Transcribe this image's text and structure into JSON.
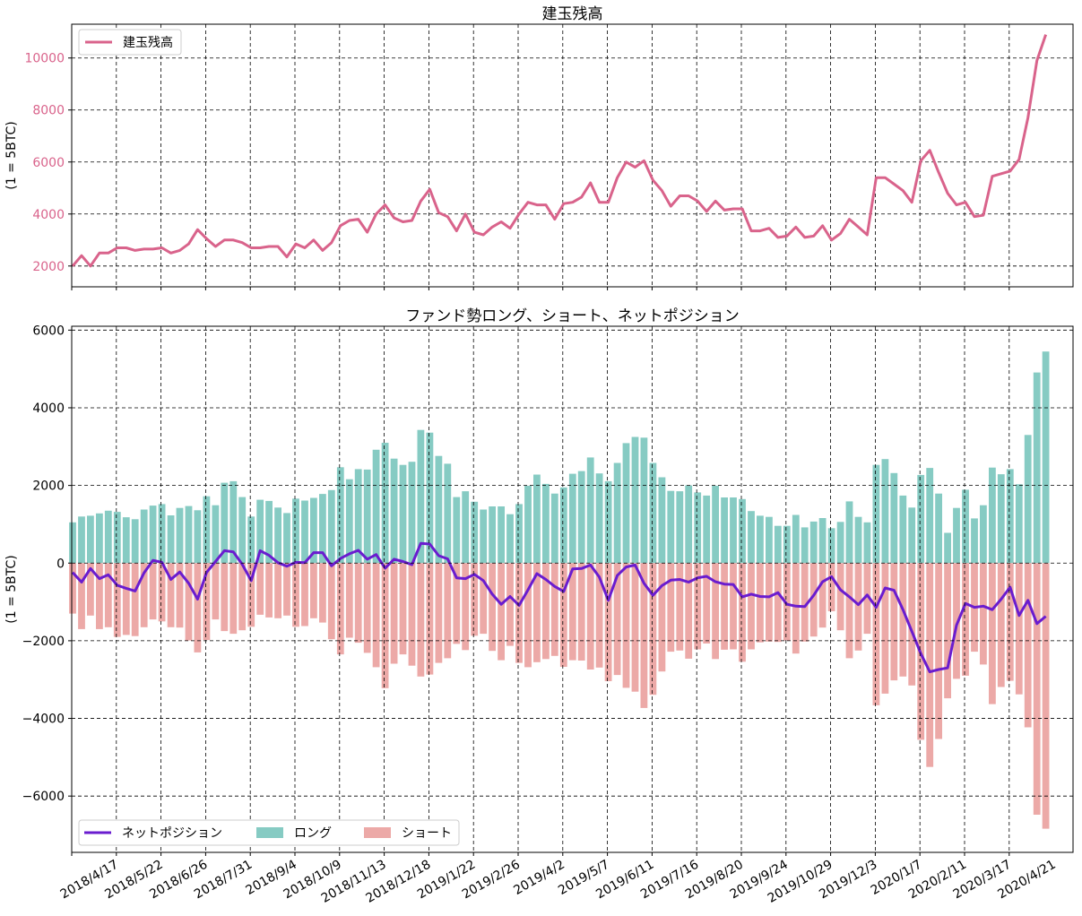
{
  "chart_data": [
    {
      "type": "line",
      "title": "建玉残高",
      "ylabel": "(1 = 5BTC)",
      "xlabel": "",
      "ylim": [
        1200,
        11300
      ],
      "yticks": [
        2000,
        4000,
        6000,
        8000,
        10000
      ],
      "grid": true,
      "legend": {
        "position": "top-left",
        "entries": [
          "建玉残高"
        ]
      },
      "colors": {
        "line": "#d9638b",
        "tick_labels": "#d9638b"
      },
      "series": [
        {
          "name": "建玉残高",
          "values": [
            2000,
            2400,
            2000,
            2500,
            2500,
            2700,
            2700,
            2600,
            2650,
            2650,
            2700,
            2500,
            2600,
            2850,
            3400,
            3050,
            2750,
            3000,
            3000,
            2900,
            2700,
            2700,
            2750,
            2750,
            2350,
            2850,
            2700,
            3000,
            2600,
            2900,
            3550,
            3750,
            3800,
            3300,
            4000,
            4350,
            3850,
            3700,
            3750,
            4500,
            4950,
            4050,
            3900,
            3350,
            4000,
            3300,
            3200,
            3500,
            3700,
            3450,
            4000,
            4450,
            4350,
            4350,
            3800,
            4400,
            4450,
            4650,
            5200,
            4450,
            4450,
            5400,
            6000,
            5800,
            6050,
            5300,
            4900,
            4300,
            4700,
            4700,
            4500,
            4100,
            4500,
            4150,
            4200,
            4200,
            3350,
            3350,
            3450,
            3100,
            3150,
            3500,
            3100,
            3150,
            3550,
            3000,
            3250,
            3800,
            3500,
            3200,
            5400,
            5400,
            5150,
            4900,
            4450,
            6050,
            6450,
            5600,
            4800,
            4350,
            4450,
            3900,
            3950,
            5450,
            5550,
            5650,
            6100,
            7700,
            9900,
            10900
          ]
        }
      ]
    },
    {
      "type": "bar",
      "title": "ファンド勢ロング、ショート、ネットポジション",
      "ylabel": "(1 = 5BTC)",
      "xlabel": "",
      "ylim": [
        -7450,
        6100
      ],
      "yticks": [
        -6000,
        -4000,
        -2000,
        0,
        2000,
        4000,
        6000
      ],
      "grid": true,
      "legend": {
        "position": "bottom-left",
        "entries": [
          "ネットポジション",
          "ロング",
          "ショート"
        ]
      },
      "colors": {
        "long": "#86cbc3",
        "short": "#eca9a7",
        "net": "#6a1ccf"
      },
      "x_tick_labels": [
        "2018/4/17",
        "2018/5/22",
        "2018/6/26",
        "2018/7/31",
        "2018/9/4",
        "2018/10/9",
        "2018/11/13",
        "2018/12/18",
        "2019/1/22",
        "2019/2/26",
        "2019/4/2",
        "2019/5/7",
        "2019/6/11",
        "2019/7/16",
        "2019/8/20",
        "2019/9/24",
        "2019/10/29",
        "2019/12/3",
        "2020/1/7",
        "2020/2/11",
        "2020/3/17",
        "2020/4/21"
      ],
      "series": [
        {
          "name": "ロング",
          "values": [
            1050,
            1200,
            1220,
            1280,
            1350,
            1320,
            1180,
            1130,
            1380,
            1480,
            1520,
            1230,
            1420,
            1470,
            1360,
            1720,
            1490,
            2070,
            2110,
            1700,
            1200,
            1630,
            1600,
            1430,
            1290,
            1660,
            1610,
            1680,
            1780,
            1880,
            2470,
            2160,
            2420,
            2410,
            2920,
            3100,
            2690,
            2530,
            2610,
            3430,
            3360,
            2760,
            2560,
            1700,
            1850,
            1580,
            1380,
            1460,
            1460,
            1260,
            1520,
            1990,
            2280,
            2040,
            1790,
            1950,
            2300,
            2370,
            2720,
            2310,
            2110,
            2580,
            3090,
            3250,
            3230,
            2580,
            2210,
            1860,
            1850,
            2000,
            1820,
            1740,
            1990,
            1690,
            1690,
            1650,
            1340,
            1220,
            1190,
            960,
            960,
            1240,
            920,
            1070,
            1160,
            900,
            1060,
            1590,
            1190,
            1050,
            2530,
            2680,
            2320,
            1740,
            1430,
            2270,
            2450,
            1790,
            780,
            1420,
            1890,
            1150,
            1490,
            2460,
            2290,
            2420,
            2030,
            3300,
            4910,
            5450
          ]
        },
        {
          "name": "ショート",
          "values": [
            -1300,
            -1700,
            -1350,
            -1700,
            -1650,
            -1900,
            -1850,
            -1880,
            -1650,
            -1450,
            -1500,
            -1650,
            -1660,
            -1990,
            -2300,
            -1980,
            -1450,
            -1750,
            -1820,
            -1730,
            -1640,
            -1330,
            -1400,
            -1420,
            -1350,
            -1640,
            -1620,
            -1420,
            -1530,
            -1960,
            -2350,
            -1920,
            -2050,
            -2310,
            -2680,
            -3220,
            -2590,
            -2350,
            -2640,
            -2920,
            -2870,
            -2570,
            -2450,
            -2080,
            -2240,
            -1870,
            -1820,
            -2260,
            -2500,
            -2130,
            -2570,
            -2680,
            -2550,
            -2470,
            -2390,
            -2670,
            -2500,
            -2510,
            -2740,
            -2690,
            -3040,
            -2880,
            -3210,
            -3310,
            -3730,
            -3390,
            -2790,
            -2280,
            -2250,
            -2460,
            -2220,
            -2070,
            -2470,
            -2230,
            -2220,
            -2540,
            -2220,
            -2040,
            -2020,
            -2030,
            -1990,
            -2330,
            -2020,
            -1890,
            -1660,
            -1240,
            -1730,
            -2450,
            -2250,
            -1820,
            -3660,
            -3360,
            -3020,
            -2920,
            -3150,
            -4550,
            -5250,
            -4530,
            -3480,
            -2980,
            -2900,
            -2280,
            -2610,
            -3630,
            -3190,
            -3030,
            -3380,
            -4230,
            -6480,
            -6840
          ]
        },
        {
          "name": "ネットポジション",
          "values": [
            -240,
            -490,
            -140,
            -400,
            -300,
            -570,
            -650,
            -720,
            -250,
            70,
            20,
            -420,
            -230,
            -520,
            -930,
            -240,
            40,
            320,
            290,
            -30,
            -450,
            320,
            200,
            10,
            -80,
            20,
            10,
            270,
            270,
            -70,
            120,
            240,
            330,
            100,
            220,
            -130,
            100,
            40,
            -40,
            510,
            490,
            190,
            110,
            -380,
            -400,
            -290,
            -450,
            -800,
            -1060,
            -860,
            -1090,
            -690,
            -270,
            -420,
            -600,
            -730,
            -150,
            -140,
            -50,
            -360,
            -960,
            -320,
            -100,
            -50,
            -520,
            -830,
            -580,
            -440,
            -420,
            -490,
            -380,
            -340,
            -480,
            -540,
            -550,
            -870,
            -800,
            -860,
            -870,
            -760,
            -1060,
            -1110,
            -1120,
            -830,
            -480,
            -350,
            -690,
            -870,
            -1070,
            -820,
            -1140,
            -640,
            -700,
            -1200,
            -1760,
            -2330,
            -2800,
            -2740,
            -2700,
            -1600,
            -1040,
            -1140,
            -1110,
            -1200,
            -930,
            -620,
            -1350,
            -960,
            -1560,
            -1370
          ]
        }
      ]
    }
  ]
}
